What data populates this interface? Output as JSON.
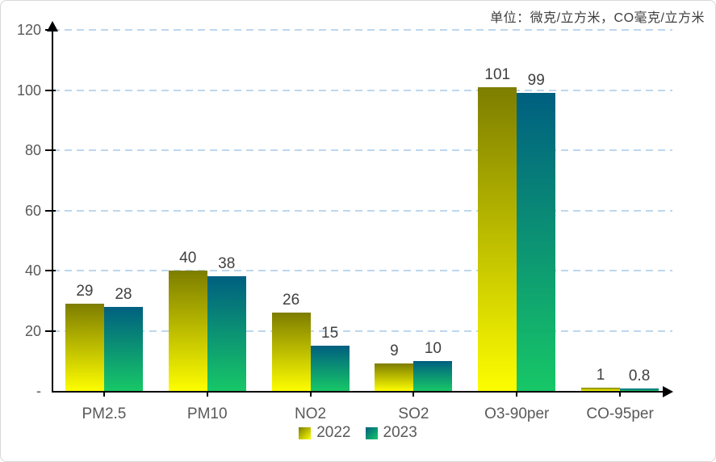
{
  "unit_label": "单位：微克/立方米，CO毫克/立方米",
  "frame": {
    "border_color": "#d8d8d8",
    "background": "#ffffff"
  },
  "chart_data": {
    "type": "bar",
    "categories": [
      "PM2.5",
      "PM10",
      "NO2",
      "SO2",
      "O3-90per",
      "CO-95per"
    ],
    "series": [
      {
        "name": "2022",
        "values": [
          29,
          40,
          26,
          9,
          101,
          1
        ],
        "gradient_top": "#7d7d00",
        "gradient_bottom": "#fdfd00"
      },
      {
        "name": "2023",
        "values": [
          28,
          38,
          15,
          10,
          99,
          0.8
        ],
        "gradient_top": "#005f80",
        "gradient_bottom": "#17c767"
      }
    ],
    "title": "",
    "xlabel": "",
    "ylabel": "",
    "y_axis": {
      "min": 0,
      "max": 120,
      "tick_step": 20,
      "tick_labels": [
        "-",
        "20",
        "40",
        "60",
        "80",
        "100",
        "120"
      ]
    },
    "grid": {
      "visible": true,
      "color": "#bdd7ee",
      "style": "dashed"
    },
    "legend": {
      "position": "bottom",
      "entries": [
        "2022",
        "2023"
      ]
    },
    "axis_color": "#000000",
    "value_label_color": "#404040",
    "tick_label_color": "#595959"
  }
}
